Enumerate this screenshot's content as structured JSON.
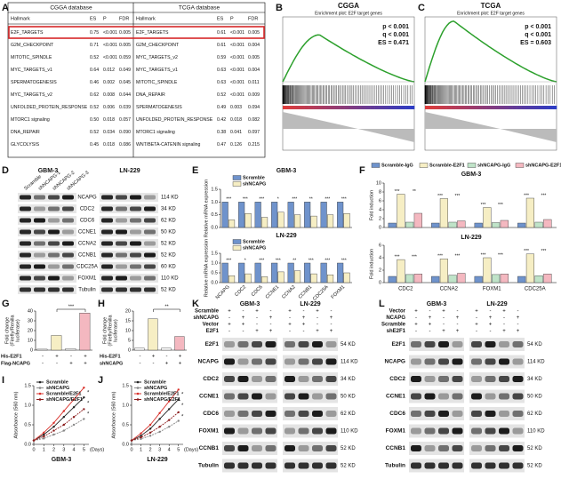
{
  "panel_labels": [
    "A",
    "B",
    "C",
    "D",
    "E",
    "F",
    "G",
    "H",
    "I",
    "J",
    "K",
    "L"
  ],
  "table": {
    "databases": [
      "CGGA database",
      "TCGA database"
    ],
    "header": [
      "Hallmark",
      "ES",
      "P",
      "FDR"
    ],
    "cgga": [
      [
        "E2F_TARGETS",
        "0.75",
        "<0.001",
        "0.005"
      ],
      [
        "G2M_CHECKPOINT",
        "0.71",
        "<0.001",
        "0.005"
      ],
      [
        "MITOTIC_SPINDLE",
        "0.52",
        "<0.001",
        "0.059"
      ],
      [
        "MYC_TARGETS_v1",
        "0.64",
        "0.012",
        "0.049"
      ],
      [
        "SPERMATOGENESIS",
        "0.46",
        "0.002",
        "0.045"
      ],
      [
        "MYC_TARGETS_v2",
        "0.62",
        "0.008",
        "0.044"
      ],
      [
        "UNFOLDED_PROTEIN_RESPONSE",
        "0.52",
        "0.006",
        "0.039"
      ],
      [
        "MTORC1 signaling",
        "0.50",
        "0.018",
        "0.057"
      ],
      [
        "DNA_REPAIR",
        "0.52",
        "0.034",
        "0.090"
      ],
      [
        "GLYCOLYSIS",
        "0.45",
        "0.018",
        "0.086"
      ]
    ],
    "tcga": [
      [
        "E2F_TARGETS",
        "0.61",
        "<0.001",
        "0.005"
      ],
      [
        "G2M_CHECKPOINT",
        "0.61",
        "<0.001",
        "0.004"
      ],
      [
        "MYC_TARGETS_v2",
        "0.59",
        "<0.001",
        "0.005"
      ],
      [
        "MYC_TARGETS_v1",
        "0.63",
        "<0.001",
        "0.004"
      ],
      [
        "MITOTIC_SPINDLE",
        "0.63",
        "<0.001",
        "0.011"
      ],
      [
        "DNA_REPAIR",
        "0.52",
        "<0.001",
        "0.009"
      ],
      [
        "SPERMATOGENESIS",
        "0.49",
        "0.003",
        "0.094"
      ],
      [
        "UNFOLDED_PROTEIN_RESPONSE",
        "0.42",
        "0.018",
        "0.082"
      ],
      [
        "MTORC1 signaling",
        "0.38",
        "0.041",
        "0.097"
      ],
      [
        "WNT/BETA-CATENIN signaling",
        "0.47",
        "0.126",
        "0.215"
      ]
    ]
  },
  "gsea": [
    {
      "title": "CGGA",
      "subtitle": "Enrichment plot: E2F target genes",
      "stats": [
        "p < 0.001",
        "q < 0.001",
        "ES = 0.471"
      ]
    },
    {
      "title": "TCGA",
      "subtitle": "Enrichment plot: E2F target genes",
      "stats": [
        "p < 0.001",
        "q < 0.001",
        "ES = 0.603"
      ]
    }
  ],
  "blot_d": {
    "groups": [
      "GBM-3",
      "LN-229"
    ],
    "lanes": [
      "Scramble",
      "shNCAPG-1",
      "shNCAPG-2",
      "shNCAPG-3"
    ],
    "proteins": [
      {
        "name": "NCAPG",
        "kd": "114 KD"
      },
      {
        "name": "CDC2",
        "kd": "34 KD"
      },
      {
        "name": "CDC6",
        "kd": "62 KD"
      },
      {
        "name": "CCNE1",
        "kd": "50 KD"
      },
      {
        "name": "CCNA2",
        "kd": "52 KD"
      },
      {
        "name": "CCNB1",
        "kd": "52 KD"
      },
      {
        "name": "CDC25A",
        "kd": "60 KD"
      },
      {
        "name": "FOXM1",
        "kd": "110 KD"
      },
      {
        "name": "Tubulin",
        "kd": "52 KD"
      }
    ]
  },
  "chart_data": [
    {
      "type": "bar",
      "title": "GBM-3",
      "ylabel": "Relative mRNA expression",
      "categories": [
        null,
        null,
        null,
        null,
        null,
        null,
        null,
        null
      ],
      "series": [
        {
          "name": "Scramble",
          "color": "#6f93cc",
          "values": [
            1,
            1,
            1,
            1,
            1,
            1,
            1,
            1
          ]
        },
        {
          "name": "shNCAPG",
          "color": "#f6eec4",
          "values": [
            0.3,
            0.55,
            0.4,
            0.6,
            0.5,
            0.45,
            0.5,
            0.55
          ]
        }
      ],
      "ylim": [
        0,
        1.5
      ],
      "yticks": [
        {
          "value": 0,
          "label": "0.0"
        },
        {
          "value": 0.5,
          "label": "0.5"
        },
        {
          "value": 1,
          "label": "1.0"
        },
        {
          "value": 1.5,
          "label": "1.5"
        }
      ],
      "annotations": [
        [
          "***"
        ],
        [
          "***"
        ],
        [
          "***"
        ],
        [
          "*"
        ],
        [
          "***"
        ],
        [
          "**"
        ],
        [
          "***"
        ],
        [
          "***"
        ]
      ]
    },
    {
      "type": "bar",
      "title": "LN-229",
      "ylabel": "Relative mRNA expression",
      "categories": [
        "NCAPG",
        "CDC2",
        "CDC6",
        "CCNE1",
        "CCNA2",
        "CCNB1",
        "CDC25A",
        "FOXM1"
      ],
      "series": [
        {
          "name": "Scramble",
          "color": "#6f93cc",
          "values": [
            1,
            1,
            1,
            1,
            1,
            1,
            1,
            1
          ]
        },
        {
          "name": "shNCAPG",
          "color": "#f6eec4",
          "values": [
            0.35,
            0.45,
            0.3,
            0.55,
            0.6,
            0.45,
            0.4,
            0.5
          ]
        }
      ],
      "ylim": [
        0,
        1.5
      ],
      "yticks": [
        {
          "value": 0,
          "label": "0.0"
        },
        {
          "value": 0.5,
          "label": "0.5"
        },
        {
          "value": 1,
          "label": "1.0"
        },
        {
          "value": 1.5,
          "label": "1.5"
        }
      ],
      "annotations": [
        [
          "***"
        ],
        [
          "*"
        ],
        [
          "***"
        ],
        [
          "***"
        ],
        [
          "**"
        ],
        [
          "***"
        ],
        [
          "***"
        ],
        [
          "***"
        ]
      ]
    },
    {
      "type": "bar",
      "title": "GBM-3",
      "ylabel": "Fold induction",
      "categories": [
        null,
        null,
        null,
        null
      ],
      "series": [
        {
          "name": "Scramble-IgG",
          "color": "#6f93cc",
          "values": [
            1,
            1,
            1,
            1
          ]
        },
        {
          "name": "Scramble-E2F1",
          "color": "#f6eec4",
          "values": [
            7.5,
            6.5,
            4.5,
            6.6
          ]
        },
        {
          "name": "shNCAPG-IgG",
          "color": "#bfe3c8",
          "values": [
            1.2,
            1.2,
            1.1,
            1.2
          ]
        },
        {
          "name": "shNCAPG-E2F1",
          "color": "#f4b8c0",
          "values": [
            3.2,
            1.5,
            1.6,
            1.8
          ]
        }
      ],
      "ylim": [
        0,
        10
      ],
      "yticks": [
        0,
        2,
        4,
        6,
        8,
        10
      ],
      "annotations": [
        [
          "***",
          "**"
        ],
        [
          "***",
          "***"
        ],
        [
          "***",
          "***"
        ],
        [
          "***",
          "***"
        ]
      ]
    },
    {
      "type": "bar",
      "title": "LN-229",
      "ylabel": "Fold induction",
      "categories": [
        "CDC2",
        "CCNA2",
        "FOXM1",
        "CDC25A"
      ],
      "series": [
        {
          "color": "#6f93cc",
          "values": [
            1,
            1,
            1,
            1
          ]
        },
        {
          "color": "#f6eec4",
          "values": [
            3.7,
            3.8,
            4.0,
            4.6
          ]
        },
        {
          "color": "#bfe3c8",
          "values": [
            1.3,
            1.2,
            1.3,
            1.1
          ]
        },
        {
          "color": "#f4b8c0",
          "values": [
            1.4,
            1.5,
            1.4,
            1.4
          ]
        }
      ],
      "ylim": [
        0,
        6
      ],
      "yticks": [
        0,
        2,
        4,
        6
      ],
      "annotations": [
        [
          "***",
          "***"
        ],
        [
          "***",
          "***"
        ],
        [
          "***",
          "***"
        ],
        [
          "***",
          "***"
        ]
      ]
    },
    {
      "type": "bar",
      "ylabel": [
        "Fold change",
        "(Firefly/Renilla",
        "luciferase)"
      ],
      "categories": [
        null,
        null,
        null,
        null
      ],
      "values": [
        1,
        15,
        1.5,
        38
      ],
      "colors": [
        "#ffffff",
        "#f6eec4",
        "#ffffff",
        "#f4b8c0"
      ],
      "ylim": [
        0,
        40
      ],
      "yticks": [
        0,
        10,
        20,
        30,
        40
      ],
      "annotation": "***",
      "conditions": [
        {
          "name": "His-E2F1",
          "signs": [
            "-",
            "+",
            "-",
            "+"
          ]
        },
        {
          "name": "Flag-NCAPG",
          "signs": [
            "-",
            "-",
            "+",
            "+"
          ]
        }
      ]
    },
    {
      "type": "bar",
      "ylabel": [
        "Fold change",
        "(Firefly/Renilla",
        "luciferase)"
      ],
      "categories": [
        null,
        null,
        null,
        null
      ],
      "values": [
        1,
        16,
        1,
        7
      ],
      "colors": [
        "#ffffff",
        "#f6eec4",
        "#ffffff",
        "#f4b8c0"
      ],
      "ylim": [
        0,
        20
      ],
      "yticks": [
        0,
        5,
        10,
        15,
        20
      ],
      "annotation": "**",
      "conditions": [
        {
          "name": "His-E2F1",
          "signs": [
            "-",
            "+",
            "-",
            "+"
          ]
        },
        {
          "name": "shNCAPG",
          "signs": [
            "-",
            "-",
            "+",
            "+"
          ]
        }
      ]
    },
    {
      "type": "line",
      "title": "GBM-3",
      "ylabel": "Absorbance (560 nm)",
      "xlabel": "(Days)",
      "x": [
        0,
        1,
        2,
        3,
        4,
        5
      ],
      "xlim": [
        0,
        5.5
      ],
      "xticks": [
        0,
        1,
        2,
        3,
        4,
        5
      ],
      "ylim": [
        0,
        1.5
      ],
      "yticks": [
        {
          "value": 0,
          "label": "0.0"
        },
        {
          "value": 0.5,
          "label": "0.5"
        },
        {
          "value": 1,
          "label": "1.0"
        },
        {
          "value": 1.5,
          "label": "1.5"
        }
      ],
      "series": [
        {
          "name": "Scramble",
          "color": "#222222",
          "values": [
            0.1,
            0.25,
            0.45,
            0.7,
            0.95,
            1.2
          ]
        },
        {
          "name": "shNCAPG",
          "color": "#888888",
          "values": [
            0.1,
            0.15,
            0.25,
            0.35,
            0.5,
            0.65
          ]
        },
        {
          "name": "Scramble/E2F1",
          "color": "#d9302a",
          "values": [
            0.1,
            0.3,
            0.55,
            0.85,
            1.15,
            1.45
          ]
        },
        {
          "name": "shNCAPG/E2F1",
          "color": "#8b1c1c",
          "values": [
            0.1,
            0.2,
            0.35,
            0.5,
            0.7,
            0.9
          ]
        }
      ],
      "annotations": [
        "*",
        "*",
        "*"
      ]
    },
    {
      "type": "line",
      "title": "LN-229",
      "ylabel": "Absorbance (560 nm)",
      "xlabel": "(Days)",
      "x": [
        0,
        1,
        2,
        3,
        4,
        5
      ],
      "xlim": [
        0,
        5.5
      ],
      "xticks": [
        0,
        1,
        2,
        3,
        4,
        5
      ],
      "ylim": [
        0,
        1.5
      ],
      "yticks": [
        {
          "value": 0,
          "label": "0.0"
        },
        {
          "value": 0.5,
          "label": "0.5"
        },
        {
          "value": 1,
          "label": "1.0"
        },
        {
          "value": 1.5,
          "label": "1.5"
        }
      ],
      "series": [
        {
          "name": "Scramble",
          "color": "#222222",
          "values": [
            0.1,
            0.22,
            0.4,
            0.65,
            0.9,
            1.15
          ]
        },
        {
          "name": "shNCAPG",
          "color": "#888888",
          "values": [
            0.1,
            0.14,
            0.22,
            0.32,
            0.45,
            0.6
          ]
        },
        {
          "name": "Scramble/E2F1",
          "color": "#d9302a",
          "values": [
            0.1,
            0.28,
            0.5,
            0.8,
            1.1,
            1.4
          ]
        },
        {
          "name": "shNCAPG/E2F1",
          "color": "#8b1c1c",
          "values": [
            0.1,
            0.18,
            0.3,
            0.45,
            0.62,
            0.82
          ]
        }
      ],
      "annotations": [
        "*",
        "*",
        "*"
      ]
    }
  ],
  "blots": [
    {
      "groups": [
        "GBM-3",
        "LN-229"
      ],
      "conditions": [
        {
          "name": "Scramble",
          "signs": [
            "+",
            "-",
            "+",
            "-",
            "+",
            "-",
            "+",
            "-"
          ]
        },
        {
          "name": "shNCAPG",
          "signs": [
            "-",
            "+",
            "-",
            "+",
            "-",
            "+",
            "-",
            "+"
          ]
        },
        {
          "name": "Vector",
          "signs": [
            "+",
            "+",
            "-",
            "-",
            "+",
            "+",
            "-",
            "-"
          ]
        },
        {
          "name": "E2F1",
          "signs": [
            "-",
            "-",
            "+",
            "+",
            "-",
            "-",
            "+",
            "+"
          ]
        }
      ],
      "proteins": [
        {
          "name": "E2F1",
          "kd": "54 KD"
        },
        {
          "name": "NCAPG",
          "kd": "114 KD"
        },
        {
          "name": "CDC2",
          "kd": "34 KD"
        },
        {
          "name": "CCNE1",
          "kd": "50 KD"
        },
        {
          "name": "CDC6",
          "kd": "62 KD"
        },
        {
          "name": "FOXM1",
          "kd": "110 KD"
        },
        {
          "name": "CCNB1",
          "kd": "52 KD"
        },
        {
          "name": "Tubulin",
          "kd": "52 KD"
        }
      ]
    },
    {
      "groups": [
        "GBM-3",
        "LN-229"
      ],
      "conditions": [
        {
          "name": "Vector",
          "signs": [
            "+",
            "-",
            "+",
            "-",
            "+",
            "-",
            "+",
            "-"
          ]
        },
        {
          "name": "NCAPG",
          "signs": [
            "-",
            "+",
            "-",
            "+",
            "-",
            "+",
            "-",
            "+"
          ]
        },
        {
          "name": "Scramble",
          "signs": [
            "+",
            "+",
            "-",
            "-",
            "+",
            "+",
            "-",
            "-"
          ]
        },
        {
          "name": "shE2F1",
          "signs": [
            "-",
            "-",
            "+",
            "+",
            "-",
            "-",
            "+",
            "+"
          ]
        }
      ],
      "proteins": [
        {
          "name": "E2F1",
          "kd": "54 KD"
        },
        {
          "name": "NCAPG",
          "kd": "114 KD"
        },
        {
          "name": "CDC2",
          "kd": "34 KD"
        },
        {
          "name": "CCNE1",
          "kd": "50 KD"
        },
        {
          "name": "CDC6",
          "kd": "62 KD"
        },
        {
          "name": "FOXM1",
          "kd": "110 KD"
        },
        {
          "name": "CCNB1",
          "kd": "52 KD"
        },
        {
          "name": "Tubulin",
          "kd": "52 KD"
        }
      ]
    }
  ]
}
